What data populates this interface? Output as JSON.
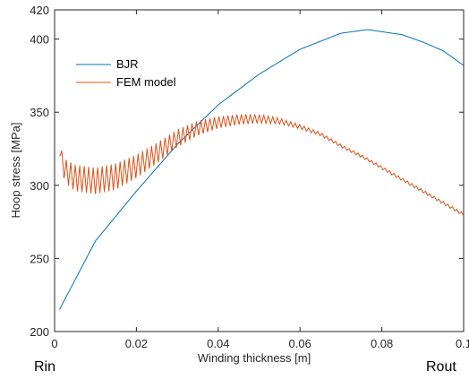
{
  "chart_data": {
    "type": "line",
    "xlabel": "Winding thickness [m]",
    "ylabel": "Hoop stress [MPa]",
    "xlim": [
      0,
      0.1
    ],
    "ylim": [
      200,
      420
    ],
    "xticks": [
      0,
      0.02,
      0.04,
      0.06,
      0.08,
      0.1
    ],
    "xtick_labels": [
      "0",
      "0.02",
      "0.04",
      "0.06",
      "0.08",
      "0.1"
    ],
    "yticks": [
      200,
      250,
      300,
      350,
      400,
      420
    ],
    "ytick_labels": [
      "200",
      "250",
      "300",
      "350",
      "400",
      "420"
    ],
    "grid": false,
    "legend_position": "top-left",
    "series": [
      {
        "name": "BJR",
        "color": "#0072BD",
        "x": [
          0.0012,
          0.01,
          0.02,
          0.03,
          0.04,
          0.05,
          0.06,
          0.07,
          0.0765,
          0.085,
          0.09,
          0.095,
          0.1
        ],
        "y": [
          215,
          262,
          296,
          328,
          355,
          376,
          393,
          404,
          406.5,
          403,
          398,
          392,
          382
        ]
      },
      {
        "name": "FEM model",
        "color": "#D95319",
        "oscillating": true,
        "x": [
          0.0012,
          0.0025,
          0.005,
          0.01,
          0.015,
          0.02,
          0.025,
          0.03,
          0.035,
          0.04,
          0.045,
          0.05,
          0.055,
          0.06,
          0.065,
          0.07,
          0.075,
          0.08,
          0.085,
          0.09,
          0.095,
          0.1
        ],
        "y": [
          324,
          310,
          305,
          303,
          306,
          313,
          322,
          332,
          339,
          343,
          345,
          345.5,
          344,
          340,
          335,
          327,
          320,
          312,
          304,
          296,
          288,
          280
        ],
        "ripple_amplitude": [
          4,
          8,
          9,
          9,
          9,
          8,
          7,
          6,
          5,
          4,
          3.5,
          3,
          2,
          1.5,
          1.2,
          1,
          1,
          1,
          1,
          1,
          1,
          1
        ]
      }
    ],
    "annotations": {
      "left": "Rin",
      "right": "Rout"
    }
  }
}
